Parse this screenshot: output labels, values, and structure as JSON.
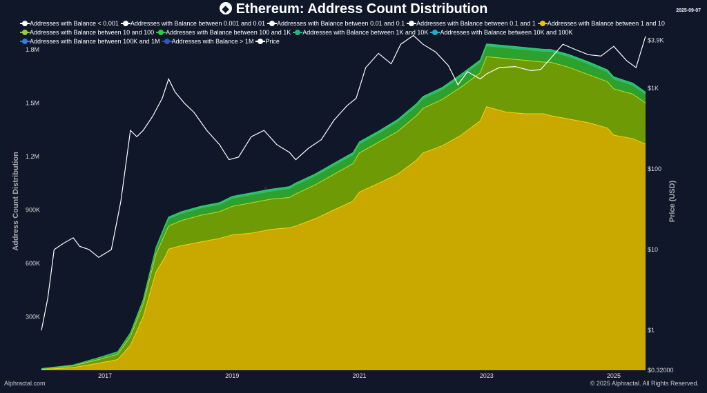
{
  "title": "Ethereum: Address Count Distribution",
  "date": "2025-09-07",
  "footer_left": "Alphractal.com",
  "footer_right": "© 2025 Alphractal. All Rights Reserved.",
  "watermark": "Alphractal",
  "chart_data": {
    "type": "area",
    "title": "Ethereum: Address Count Distribution",
    "ylabel_left": "Address Count Distribution",
    "ylabel_right": "Price (USD)",
    "xlim": [
      2016.0,
      2025.5
    ],
    "ylim_left": [
      0,
      1800000
    ],
    "ylim_right_log": [
      0.32,
      3000
    ],
    "x_ticks": [
      "2017",
      "2019",
      "2021",
      "2023",
      "2025"
    ],
    "y_ticks_left": [
      "300K",
      "600K",
      "900K",
      "1.2M",
      "1.5M",
      "1.8M"
    ],
    "y_ticks_right": [
      "$0.32000",
      "$1",
      "$10",
      "$100",
      "$1K",
      "$3.9K"
    ],
    "legend": [
      {
        "name": "Addresses with Balance < 0.001",
        "color": "#ffffff"
      },
      {
        "name": "Addresses with Balance between 0.001 and 0.01",
        "color": "#ffffff"
      },
      {
        "name": "Addresses with Balance between 0.01 and 0.1",
        "color": "#ffffff"
      },
      {
        "name": "Addresses with Balance between 0.1 and 1",
        "color": "#ffffff"
      },
      {
        "name": "Addresses with Balance between 1 and 10",
        "color": "#f2c400"
      },
      {
        "name": "Addresses with Balance between 10 and 100",
        "color": "#9acd32"
      },
      {
        "name": "Addresses with Balance between 100 and 1K",
        "color": "#2ecc40"
      },
      {
        "name": "Addresses with Balance between 1K and 10K",
        "color": "#1abc7c"
      },
      {
        "name": "Addresses with Balance between 10K and 100K",
        "color": "#1ab0c8"
      },
      {
        "name": "Addresses with Balance between 100K and 1M",
        "color": "#3a7bd5"
      },
      {
        "name": "Addresses with Balance > 1M",
        "color": "#2e59b8"
      },
      {
        "name": "Price",
        "color": "#ffffff"
      }
    ],
    "x": [
      2016.0,
      2016.5,
      2016.9,
      2017.2,
      2017.4,
      2017.6,
      2017.8,
      2017.95,
      2018.0,
      2018.2,
      2018.5,
      2018.8,
      2019.0,
      2019.3,
      2019.6,
      2019.9,
      2020.0,
      2020.3,
      2020.6,
      2020.9,
      2021.0,
      2021.3,
      2021.6,
      2021.9,
      2022.0,
      2022.3,
      2022.6,
      2022.9,
      2023.0,
      2023.3,
      2023.6,
      2023.9,
      2024.0,
      2024.3,
      2024.6,
      2024.9,
      2025.0,
      2025.3,
      2025.5
    ],
    "series": [
      {
        "name": "Addresses with Balance between 1 and 10",
        "color": "#c9a800",
        "values": [
          5000,
          15000,
          40000,
          60000,
          140000,
          300000,
          550000,
          640000,
          680000,
          700000,
          720000,
          740000,
          760000,
          770000,
          790000,
          800000,
          810000,
          850000,
          900000,
          950000,
          1000000,
          1050000,
          1100000,
          1180000,
          1220000,
          1260000,
          1320000,
          1400000,
          1480000,
          1450000,
          1440000,
          1440000,
          1430000,
          1410000,
          1390000,
          1360000,
          1320000,
          1300000,
          1270000
        ]
      },
      {
        "name": "Addresses with Balance between 10 and 100",
        "color": "#6d9a05",
        "values": [
          3000,
          10000,
          20000,
          30000,
          50000,
          70000,
          100000,
          130000,
          130000,
          140000,
          150000,
          150000,
          160000,
          170000,
          170000,
          170000,
          180000,
          190000,
          200000,
          210000,
          220000,
          230000,
          240000,
          250000,
          250000,
          260000,
          270000,
          270000,
          280000,
          300000,
          300000,
          290000,
          300000,
          290000,
          270000,
          260000,
          260000,
          250000,
          230000
        ]
      },
      {
        "name": "Addresses with Balance between 100 and 1K",
        "color": "#2ea02e",
        "values": [
          1000,
          3000,
          8000,
          10000,
          15000,
          20000,
          30000,
          40000,
          40000,
          40000,
          40000,
          40000,
          45000,
          45000,
          45000,
          50000,
          50000,
          50000,
          50000,
          50000,
          50000,
          50000,
          55000,
          55000,
          55000,
          55000,
          60000,
          60000,
          60000,
          60000,
          60000,
          60000,
          60000,
          60000,
          60000,
          55000,
          55000,
          50000,
          50000
        ]
      },
      {
        "name": "Addresses with Balance between 1K and 10K",
        "color": "#1abc7c",
        "values": [
          500,
          1000,
          2000,
          3000,
          4000,
          5000,
          6000,
          7000,
          7000,
          7000,
          7000,
          8000,
          8000,
          8000,
          8000,
          8000,
          8000,
          8000,
          9000,
          9000,
          9000,
          9000,
          9000,
          9000,
          9000,
          9000,
          9000,
          9000,
          9000,
          9000,
          9000,
          9000,
          9000,
          9000,
          9000,
          9000,
          9000,
          9000,
          9000
        ]
      },
      {
        "name": "Addresses with Balance between 10K and 100K",
        "color": "#1ab0c8",
        "values": [
          200,
          400,
          800,
          1000,
          1200,
          1500,
          2000,
          2500,
          2500,
          2500,
          2500,
          2500,
          2500,
          2500,
          2500,
          2500,
          2500,
          2500,
          2500,
          2500,
          2500,
          2500,
          2500,
          2500,
          2500,
          2500,
          2500,
          2500,
          2500,
          2500,
          2500,
          2500,
          2500,
          2500,
          2500,
          2500,
          2500,
          2500,
          2500
        ]
      },
      {
        "name": "Addresses with Balance between 100K and 1M",
        "color": "#3a7bd5",
        "values": [
          100,
          200,
          300,
          400,
          500,
          600,
          700,
          800,
          800,
          800,
          800,
          800,
          800,
          800,
          800,
          800,
          800,
          800,
          800,
          800,
          800,
          800,
          800,
          800,
          800,
          800,
          800,
          800,
          800,
          800,
          800,
          800,
          800,
          800,
          800,
          800,
          800,
          800,
          800
        ]
      },
      {
        "name": "Addresses with Balance > 1M",
        "color": "#2e59b8",
        "values": [
          50,
          50,
          80,
          100,
          100,
          100,
          150,
          150,
          150,
          150,
          150,
          150,
          150,
          150,
          150,
          150,
          150,
          150,
          150,
          150,
          150,
          150,
          150,
          150,
          150,
          150,
          150,
          150,
          150,
          150,
          150,
          150,
          150,
          150,
          150,
          150,
          150,
          150,
          150
        ]
      }
    ],
    "price": {
      "name": "Price",
      "color": "#ffffff",
      "x": [
        2016.0,
        2016.1,
        2016.2,
        2016.35,
        2016.5,
        2016.6,
        2016.75,
        2016.9,
        2017.1,
        2017.25,
        2017.4,
        2017.5,
        2017.6,
        2017.75,
        2017.9,
        2018.0,
        2018.1,
        2018.25,
        2018.4,
        2018.6,
        2018.8,
        2018.95,
        2019.1,
        2019.3,
        2019.5,
        2019.7,
        2019.9,
        2020.0,
        2020.2,
        2020.4,
        2020.6,
        2020.8,
        2020.95,
        2021.1,
        2021.3,
        2021.5,
        2021.65,
        2021.85,
        2022.0,
        2022.2,
        2022.4,
        2022.55,
        2022.7,
        2022.9,
        2023.0,
        2023.2,
        2023.45,
        2023.7,
        2023.85,
        2024.0,
        2024.2,
        2024.4,
        2024.6,
        2024.8,
        2025.0,
        2025.2,
        2025.35,
        2025.5
      ],
      "values": [
        1,
        2.5,
        10,
        12,
        14,
        11,
        10,
        8,
        10,
        40,
        300,
        250,
        300,
        450,
        750,
        1300,
        900,
        650,
        500,
        300,
        200,
        130,
        140,
        250,
        300,
        200,
        160,
        130,
        180,
        230,
        400,
        600,
        750,
        1800,
        2700,
        2000,
        3500,
        4500,
        3500,
        2800,
        1900,
        1100,
        1600,
        1300,
        1500,
        1800,
        1850,
        1650,
        1700,
        2300,
        3500,
        3000,
        2600,
        2500,
        3300,
        2200,
        1800,
        4400
      ]
    }
  }
}
